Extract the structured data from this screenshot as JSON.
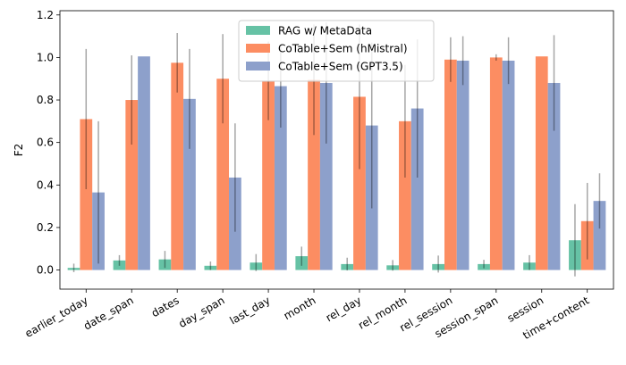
{
  "chart_data": {
    "type": "bar",
    "title": "",
    "xlabel": "",
    "ylabel": "F2",
    "ylim": [
      -0.09,
      1.22
    ],
    "yticks": [
      0.0,
      0.2,
      0.4,
      0.6,
      0.8,
      1.0,
      1.2
    ],
    "grid": false,
    "legend_position": "top-center",
    "categories": [
      "earlier_today",
      "date_span",
      "dates",
      "day_span",
      "last_day",
      "month",
      "rel_day",
      "rel_month",
      "rel_session",
      "session_span",
      "session",
      "time+content"
    ],
    "series": [
      {
        "name": "RAG w/ MetaData",
        "color": "#66c2a5",
        "values": [
          0.01,
          0.045,
          0.05,
          0.02,
          0.035,
          0.065,
          0.028,
          0.022,
          0.028,
          0.028,
          0.035,
          0.14
        ],
        "errors": [
          0.02,
          0.025,
          0.04,
          0.02,
          0.04,
          0.045,
          0.03,
          0.025,
          0.04,
          0.02,
          0.035,
          0.17
        ]
      },
      {
        "name": "CoTable+Sem (hMistral)",
        "color": "#fc8d62",
        "values": [
          0.71,
          0.8,
          0.975,
          0.9,
          0.89,
          0.895,
          0.815,
          0.7,
          0.99,
          1.0,
          1.005,
          0.23
        ],
        "errors": [
          0.33,
          0.21,
          0.14,
          0.21,
          0.185,
          0.26,
          0.34,
          0.265,
          0.105,
          0.015,
          0.0,
          0.18
        ]
      },
      {
        "name": "CoTable+Sem (GPT3.5)",
        "color": "#8da0cb",
        "values": [
          0.365,
          1.005,
          0.805,
          0.435,
          0.865,
          0.88,
          0.68,
          0.76,
          0.985,
          0.985,
          0.88,
          0.325
        ],
        "errors": [
          0.335,
          0.0,
          0.235,
          0.255,
          0.195,
          0.285,
          0.39,
          0.325,
          0.115,
          0.11,
          0.225,
          0.13
        ]
      }
    ]
  }
}
